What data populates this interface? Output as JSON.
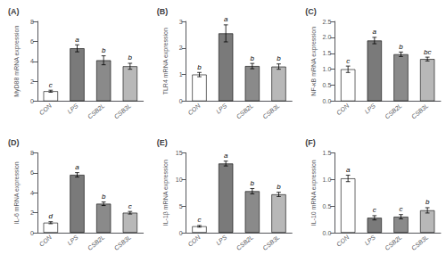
{
  "chart_data": [
    {
      "type": "bar",
      "title": "(A)",
      "ylabel": "MyD88 mRNA expression",
      "categories": [
        "CON",
        "LPS",
        "CSB2L",
        "CSB3L"
      ],
      "values": [
        1.0,
        5.3,
        4.1,
        3.5
      ],
      "errors": [
        0.1,
        0.35,
        0.45,
        0.3
      ],
      "annotations": [
        "c",
        "a",
        "b",
        "b"
      ],
      "colors": [
        "white",
        "#7a7a7a",
        "#8a8a8a",
        "#b8b8b8"
      ],
      "ylim": [
        0,
        8
      ],
      "yticks": [
        0,
        2,
        4,
        6,
        8
      ],
      "grid": false
    },
    {
      "type": "bar",
      "title": "(B)",
      "ylabel": "TLR4 mRNA expression",
      "categories": [
        "CON",
        "LPS",
        "CSB2L",
        "CSB3L"
      ],
      "values": [
        1.0,
        2.55,
        1.32,
        1.3
      ],
      "errors": [
        0.08,
        0.32,
        0.1,
        0.1
      ],
      "annotations": [
        "b",
        "a",
        "b",
        "b"
      ],
      "colors": [
        "white",
        "#7a7a7a",
        "#8a8a8a",
        "#b8b8b8"
      ],
      "ylim": [
        0,
        3
      ],
      "yticks": [
        0,
        1,
        2,
        3
      ],
      "grid": false
    },
    {
      "type": "bar",
      "title": "(C)",
      "ylabel": "NF-κB mRNA expression",
      "categories": [
        "CON",
        "LPS",
        "CSB2L",
        "CSB3L"
      ],
      "values": [
        1.0,
        1.9,
        1.47,
        1.32
      ],
      "errors": [
        0.1,
        0.1,
        0.07,
        0.06
      ],
      "annotations": [
        "c",
        "a",
        "b",
        "bc"
      ],
      "colors": [
        "white",
        "#7a7a7a",
        "#8a8a8a",
        "#b8b8b8"
      ],
      "ylim": [
        0,
        2.5
      ],
      "yticks": [
        {
          "value": 0,
          "label": "0.0"
        },
        0.5,
        {
          "value": 1.0,
          "label": "1.0"
        },
        1.5,
        {
          "value": 2.0,
          "label": "2.0"
        },
        2.5
      ],
      "grid": false
    },
    {
      "type": "bar",
      "title": "(D)",
      "ylabel": "IL-6 mRNA expression",
      "categories": [
        "CON",
        "LPS",
        "CSB2L",
        "CSB3L"
      ],
      "values": [
        1.0,
        5.8,
        2.9,
        2.0
      ],
      "errors": [
        0.1,
        0.22,
        0.18,
        0.13
      ],
      "annotations": [
        "d",
        "a",
        "b",
        "c"
      ],
      "colors": [
        "white",
        "#7a7a7a",
        "#8a8a8a",
        "#b8b8b8"
      ],
      "ylim": [
        0,
        8
      ],
      "yticks": [
        0,
        2,
        4,
        6,
        8
      ],
      "grid": false
    },
    {
      "type": "bar",
      "title": "(E)",
      "ylabel": "IL-1β mRNA expression",
      "categories": [
        "CON",
        "LPS",
        "CSB2L",
        "CSB3L"
      ],
      "values": [
        1.2,
        13.0,
        7.8,
        7.2
      ],
      "errors": [
        0.15,
        0.45,
        0.5,
        0.4
      ],
      "annotations": [
        "c",
        "a",
        "b",
        "b"
      ],
      "colors": [
        "white",
        "#7a7a7a",
        "#8a8a8a",
        "#b8b8b8"
      ],
      "ylim": [
        0,
        15
      ],
      "yticks": [
        0,
        5,
        10,
        15
      ],
      "grid": false
    },
    {
      "type": "bar",
      "title": "(F)",
      "ylabel": "IL-10 mRNA expression",
      "categories": [
        "CON",
        "LPS",
        "CSB2L",
        "CSB3L"
      ],
      "values": [
        1.02,
        0.28,
        0.3,
        0.42
      ],
      "errors": [
        0.06,
        0.04,
        0.04,
        0.05
      ],
      "annotations": [
        "a",
        "c",
        "c",
        "b"
      ],
      "colors": [
        "white",
        "#7a7a7a",
        "#8a8a8a",
        "#b8b8b8"
      ],
      "ylim": [
        0,
        1.5
      ],
      "yticks": [
        {
          "value": 0.0,
          "label": "0.0"
        },
        0.5,
        {
          "value": 1.0,
          "label": "1.0"
        },
        1.5
      ],
      "grid": false
    }
  ]
}
